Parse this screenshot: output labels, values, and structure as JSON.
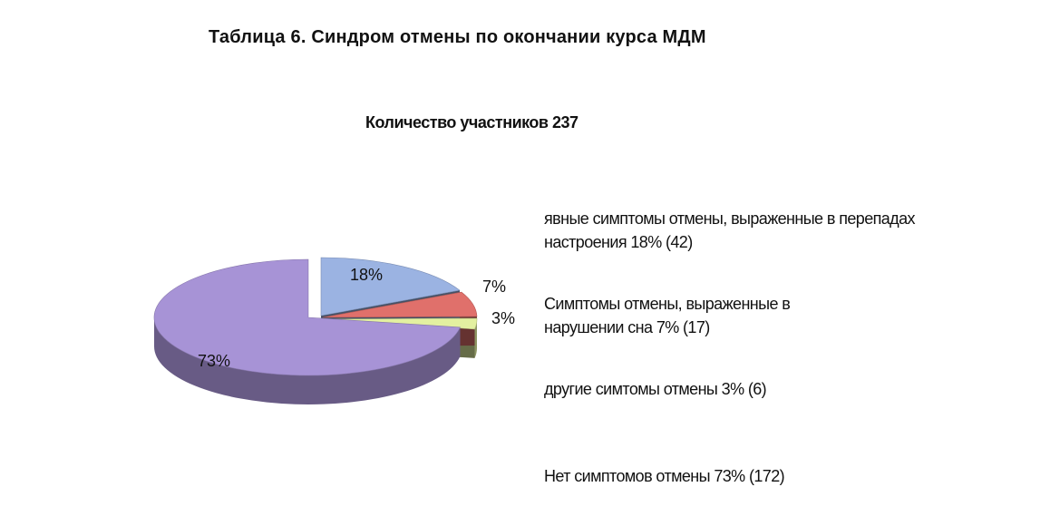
{
  "page_title": "Таблица 6. Синдром отмены по окончании курса МДМ",
  "chart_data": {
    "type": "pie",
    "title": "Количество участников 237",
    "slices": [
      {
        "label": "явные симптомы отмены, выраженные в перепадах настроения 18% (42)",
        "value": 18,
        "count": 42,
        "data_label": "18%",
        "color": "#9bb3e2"
      },
      {
        "label": "Симптомы отмены, выраженные в нарушении сна 7% (17)",
        "value": 7,
        "count": 17,
        "data_label": "7%",
        "color": "#e0706b"
      },
      {
        "label": "другие симтомы отмены  3% (6)",
        "value": 3,
        "count": 6,
        "data_label": "3%",
        "color": "#e3f0a0"
      },
      {
        "label": "Нет симптомов отмены 73% (172)",
        "value": 73,
        "count": 172,
        "data_label": "73%",
        "color": "#a793d6"
      }
    ],
    "legend_position": "right"
  }
}
